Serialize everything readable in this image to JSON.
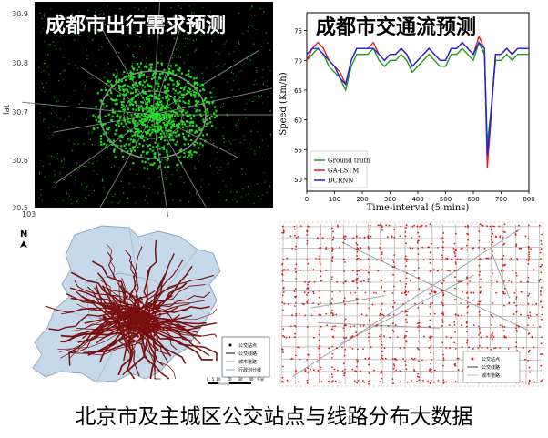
{
  "demand_panel": {
    "title": "成都市出行需求预测",
    "y_label": "lat",
    "y_ticks": [
      "30.9",
      "30.8",
      "30.7",
      "30.6",
      "30.5"
    ],
    "x_tick_partial": "103"
  },
  "traffic_panel": {
    "title": "成都市交通流预测",
    "chart_data": {
      "type": "line",
      "xlabel": "Time-interval (5 mins)",
      "ylabel": "Speed (Km/h)",
      "xlim": [
        0,
        800
      ],
      "ylim": [
        48,
        78
      ],
      "x_ticks": [
        "0",
        "100",
        "200",
        "300",
        "400",
        "500",
        "600",
        "700",
        "800"
      ],
      "y_ticks": [
        "50",
        "55",
        "60",
        "65",
        "70",
        "75"
      ],
      "legend_position": "bottom-left",
      "series": [
        {
          "name": "Ground truth",
          "color": "#1a9e1a",
          "x": [
            0,
            20,
            40,
            60,
            80,
            100,
            120,
            140,
            160,
            180,
            200,
            220,
            240,
            260,
            280,
            300,
            320,
            340,
            360,
            380,
            400,
            420,
            440,
            460,
            480,
            500,
            520,
            540,
            560,
            580,
            600,
            620,
            640,
            650,
            660,
            680,
            700,
            720,
            740,
            760,
            780,
            800
          ],
          "y": [
            70,
            71,
            72,
            71,
            69,
            68,
            67,
            65,
            69,
            71,
            71,
            71,
            72,
            70,
            69,
            70,
            70,
            71,
            70,
            68,
            69,
            70,
            71,
            70,
            69,
            69,
            71,
            71,
            72,
            71,
            70,
            73,
            71,
            56,
            60,
            70,
            70,
            71,
            70,
            71,
            71,
            71
          ]
        },
        {
          "name": "GA-LSTM",
          "color": "#e02020",
          "x": [
            0,
            20,
            40,
            60,
            80,
            100,
            120,
            140,
            160,
            180,
            200,
            220,
            240,
            260,
            280,
            300,
            320,
            340,
            360,
            380,
            400,
            420,
            440,
            460,
            480,
            500,
            520,
            540,
            560,
            580,
            600,
            620,
            640,
            650,
            660,
            680,
            700,
            720,
            740,
            760,
            780,
            800
          ],
          "y": [
            70,
            72,
            73,
            72,
            70,
            69,
            68,
            66,
            70,
            72,
            72,
            72,
            73,
            71,
            70,
            71,
            71,
            72,
            71,
            69,
            70,
            71,
            72,
            71,
            70,
            70,
            72,
            72,
            73,
            72,
            71,
            74,
            72,
            52,
            58,
            71,
            71,
            72,
            71,
            72,
            72,
            72
          ]
        },
        {
          "name": "DCRNN",
          "color": "#2020e0",
          "x": [
            0,
            20,
            40,
            60,
            80,
            100,
            120,
            140,
            160,
            180,
            200,
            220,
            240,
            260,
            280,
            300,
            320,
            340,
            360,
            380,
            400,
            420,
            440,
            460,
            480,
            500,
            520,
            540,
            560,
            580,
            600,
            620,
            640,
            650,
            660,
            680,
            700,
            720,
            740,
            760,
            780,
            800
          ],
          "y": [
            71,
            72,
            72,
            71,
            70,
            69,
            67,
            66,
            70,
            72,
            72,
            72,
            72,
            71,
            70,
            71,
            71,
            72,
            71,
            69,
            70,
            71,
            72,
            71,
            70,
            70,
            72,
            72,
            73,
            72,
            71,
            73,
            72,
            54,
            59,
            71,
            71,
            72,
            71,
            72,
            72,
            72
          ]
        }
      ]
    }
  },
  "district_panel": {
    "legend": [
      "公交站点",
      "公交线路",
      "城市道路",
      "行政划分线"
    ],
    "scale_ticks": [
      "0",
      "5",
      "10",
      "20",
      "30",
      "40"
    ],
    "scale_unit": "千米",
    "north_label": "N"
  },
  "urban_panel": {
    "legend": [
      "公交站点",
      "公交线路",
      "城市道路"
    ]
  },
  "caption": "北京市及主城区公交站点与线路分布大数据",
  "colors": {
    "demand_points": "#22dd22",
    "bus_route": "#7a0f0f",
    "bus_stop": "#e01818",
    "district_fill": "#c5d9ea",
    "urban_road": "#b8b8b8"
  }
}
